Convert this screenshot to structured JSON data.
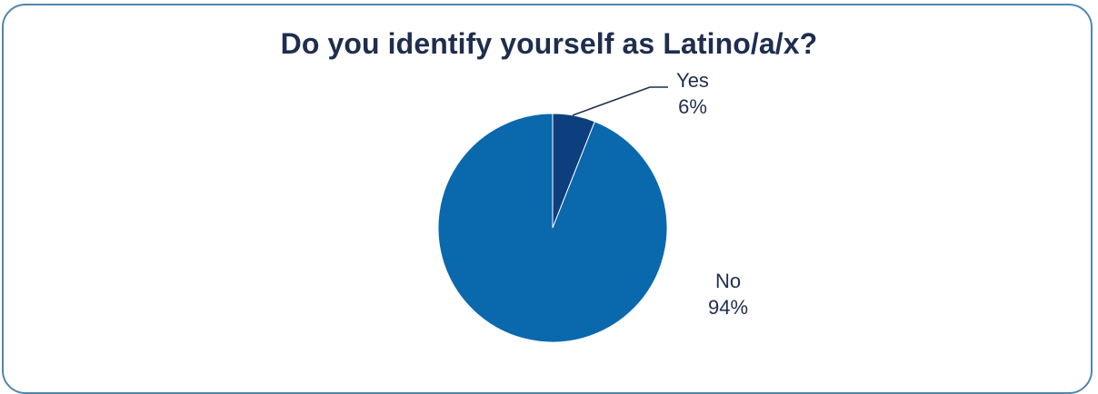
{
  "chart_data": {
    "type": "pie",
    "title": "Do you identify yourself as Latino/a/x?",
    "slices": [
      {
        "label": "Yes",
        "value": 6,
        "value_label": "6%",
        "color": "#0d3f7e"
      },
      {
        "label": "No",
        "value": 94,
        "value_label": "94%",
        "color": "#0a68ad"
      }
    ],
    "legend": "none"
  },
  "colors": {
    "frame_border": "#4f86ad",
    "title_text": "#1f2d4e",
    "slice_border": "#ffffff"
  }
}
